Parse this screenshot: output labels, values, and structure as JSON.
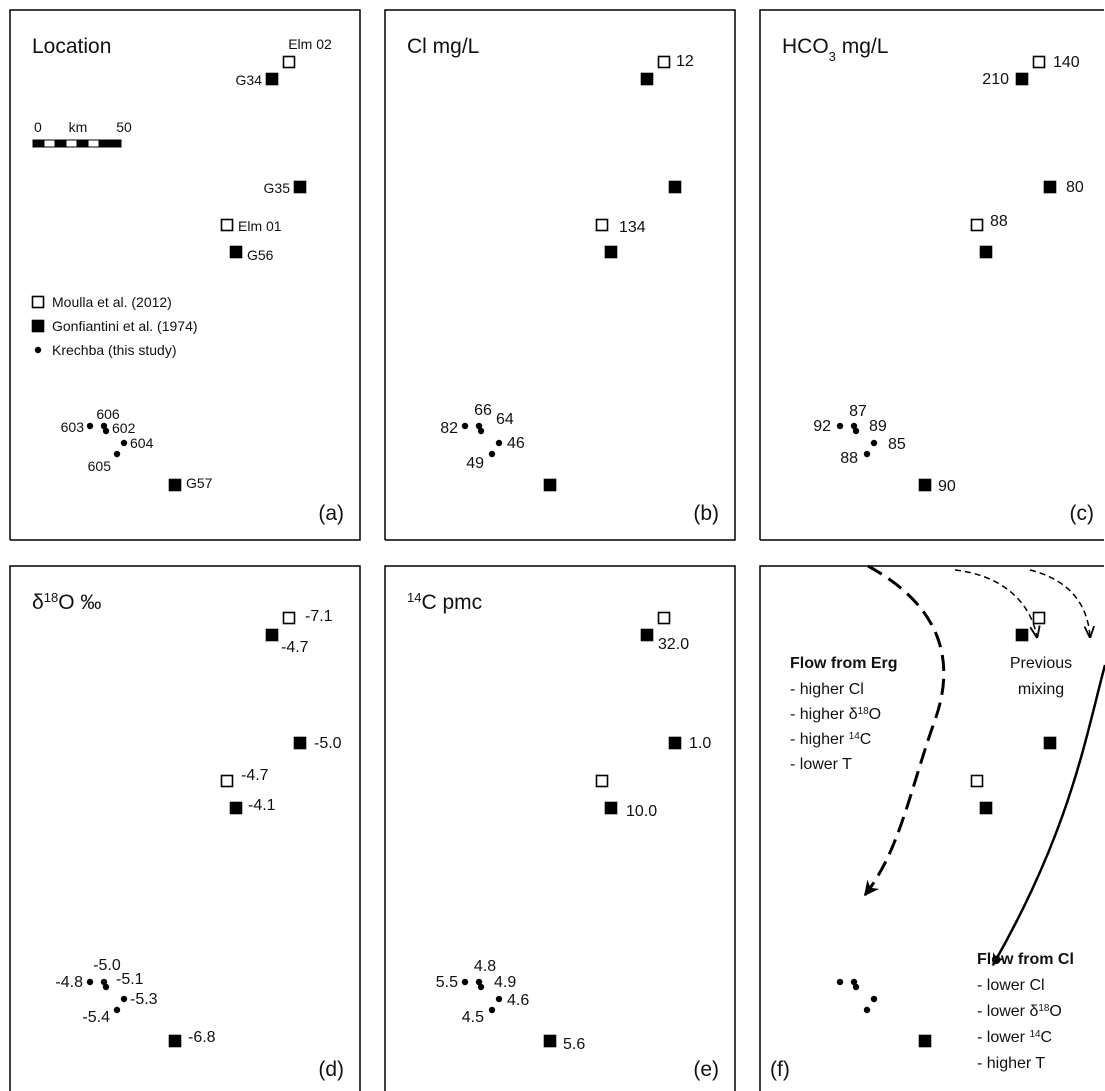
{
  "panels": [
    {
      "title": "Location",
      "letter": "(a)",
      "labels": [
        "Elm 02",
        "G34",
        "G35",
        "Elm 01",
        "G56",
        "G57",
        "603",
        "606",
        "602",
        "604",
        "605"
      ],
      "scale": [
        "0",
        "km",
        "50"
      ],
      "legend": [
        "Moulla et al. (2012)",
        "Gonfiantini et al. (1974)",
        "Krechba (this study)"
      ]
    },
    {
      "title": "Cl mg/L",
      "letter": "(b)",
      "labels": [
        "12",
        null,
        null,
        "134",
        null,
        null,
        "82",
        "66",
        "64",
        "46",
        "49"
      ]
    },
    {
      "title": {
        "text": "HCO",
        "sub": "3",
        "tail": " mg/L"
      },
      "letter": "(c)",
      "labels": [
        "140",
        "210",
        "80",
        "88",
        null,
        "90",
        "92",
        "87",
        "89",
        "85",
        "88"
      ]
    },
    {
      "title": {
        "text": "δ",
        "sup": "18",
        "tail": "O ‰"
      },
      "letter": "(d)",
      "labels": [
        "-7.1",
        "-4.7",
        "-5.0",
        "-4.7",
        "-4.1",
        "-6.8",
        "-4.8",
        "-5.0",
        "-5.1",
        "-5.3",
        "-5.4"
      ]
    },
    {
      "title": {
        "sup": "14",
        "tail": "C pmc"
      },
      "letter": "(e)",
      "labels": [
        null,
        "32.0",
        "1.0",
        null,
        "10.0",
        "5.6",
        "5.5",
        "4.8",
        "4.9",
        "4.6",
        "4.5"
      ]
    },
    {
      "letter": "(f)",
      "erg": {
        "heading": "Flow from Erg",
        "lines": [
          {
            "text": "- higher Cl"
          },
          {
            "text": "- higher δ",
            "sup": "18",
            "tail": "O"
          },
          {
            "text": "- higher ",
            "sup": "14",
            "tail": "C"
          },
          {
            "text": "- lower T"
          }
        ]
      },
      "previous": [
        "Previous",
        "mixing"
      ],
      "cl": {
        "heading": "Flow from Cl",
        "lines": [
          {
            "text": "- lower Cl"
          },
          {
            "text": "- lower δ",
            "sup": "18",
            "tail": "O"
          },
          {
            "text": "- lower ",
            "sup": "14",
            "tail": "C"
          },
          {
            "text": "- higher T"
          }
        ]
      }
    }
  ]
}
